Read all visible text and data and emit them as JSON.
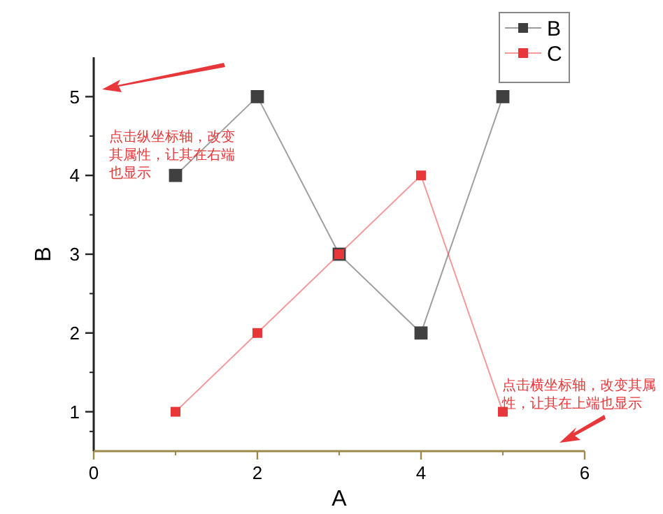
{
  "chart_data": {
    "type": "line",
    "xlabel": "A",
    "ylabel": "B",
    "x": [
      1,
      2,
      3,
      4,
      5
    ],
    "series": [
      {
        "name": "B",
        "color": "#404040",
        "values": [
          4,
          5,
          3,
          2,
          5
        ]
      },
      {
        "name": "C",
        "color": "#e8373a",
        "values": [
          1,
          2,
          3,
          4,
          1
        ]
      }
    ],
    "xlim": [
      0,
      6
    ],
    "xticks": [
      0,
      2,
      4,
      6
    ],
    "ylim": [
      0.5,
      5.5
    ],
    "yticks": [
      1,
      2,
      3,
      4,
      5
    ],
    "grid": false,
    "legend": "top right",
    "marker": "square",
    "line_style": "solid",
    "annotations": [
      "点击纵坐标轴，改变其属性，让其在右端也显示",
      "点击横坐标轴，改变其属性，让其在上端也显示"
    ]
  }
}
